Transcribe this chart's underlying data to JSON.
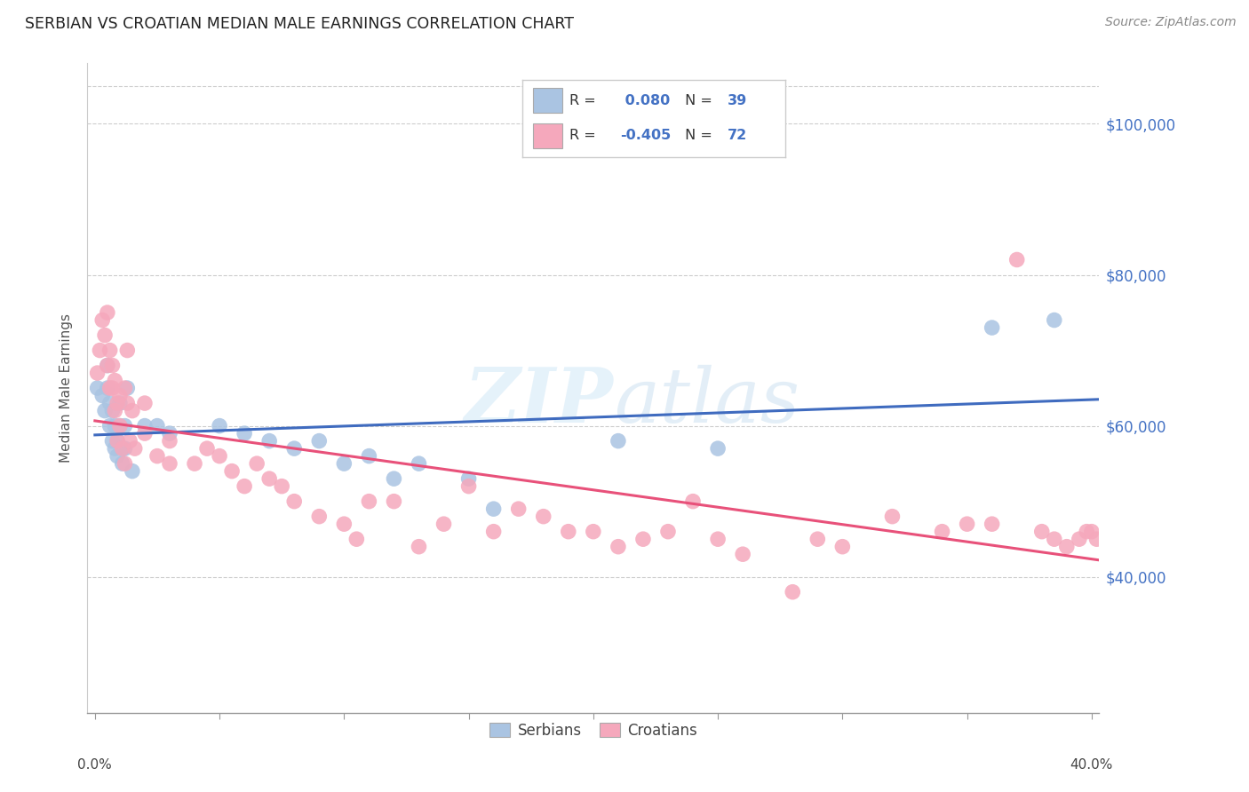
{
  "title": "SERBIAN VS CROATIAN MEDIAN MALE EARNINGS CORRELATION CHART",
  "source": "Source: ZipAtlas.com",
  "ylabel": "Median Male Earnings",
  "y_ticks": [
    40000,
    60000,
    80000,
    100000
  ],
  "y_tick_labels": [
    "$40,000",
    "$60,000",
    "$80,000",
    "$100,000"
  ],
  "ylim": [
    22000,
    108000
  ],
  "xlim": [
    -0.003,
    0.403
  ],
  "watermark_zip": "ZIP",
  "watermark_atlas": "atlas",
  "legend_R_serbian": " 0.080",
  "legend_R_croatian": "-0.405",
  "legend_N_serbian": "39",
  "legend_N_croatian": "72",
  "serbian_color": "#aac4e2",
  "croatian_color": "#f5a8bc",
  "trend_serbian_color": "#3f6bbf",
  "trend_croatian_color": "#e8517a",
  "label_color": "#4472c4",
  "serbian_x": [
    0.001,
    0.003,
    0.004,
    0.005,
    0.005,
    0.006,
    0.006,
    0.007,
    0.007,
    0.008,
    0.008,
    0.009,
    0.009,
    0.01,
    0.01,
    0.011,
    0.011,
    0.012,
    0.012,
    0.013,
    0.015,
    0.02,
    0.025,
    0.03,
    0.05,
    0.06,
    0.07,
    0.08,
    0.09,
    0.1,
    0.11,
    0.12,
    0.13,
    0.15,
    0.16,
    0.21,
    0.25,
    0.36,
    0.385
  ],
  "serbian_y": [
    65000,
    64000,
    62000,
    68000,
    65000,
    63000,
    60000,
    62000,
    58000,
    60000,
    57000,
    58000,
    56000,
    63000,
    60000,
    57000,
    55000,
    57000,
    60000,
    65000,
    54000,
    60000,
    60000,
    59000,
    60000,
    59000,
    58000,
    57000,
    58000,
    55000,
    56000,
    53000,
    55000,
    53000,
    49000,
    58000,
    57000,
    73000,
    74000
  ],
  "croatian_x": [
    0.001,
    0.002,
    0.003,
    0.004,
    0.005,
    0.005,
    0.006,
    0.006,
    0.007,
    0.007,
    0.008,
    0.008,
    0.009,
    0.009,
    0.01,
    0.01,
    0.011,
    0.012,
    0.012,
    0.013,
    0.013,
    0.014,
    0.015,
    0.016,
    0.02,
    0.02,
    0.025,
    0.03,
    0.03,
    0.04,
    0.045,
    0.05,
    0.055,
    0.06,
    0.065,
    0.07,
    0.075,
    0.08,
    0.09,
    0.1,
    0.105,
    0.11,
    0.12,
    0.13,
    0.14,
    0.15,
    0.16,
    0.17,
    0.18,
    0.19,
    0.2,
    0.21,
    0.22,
    0.23,
    0.24,
    0.25,
    0.26,
    0.28,
    0.29,
    0.3,
    0.32,
    0.34,
    0.35,
    0.36,
    0.37,
    0.38,
    0.385,
    0.39,
    0.395,
    0.398,
    0.4,
    0.402
  ],
  "croatian_y": [
    67000,
    70000,
    74000,
    72000,
    68000,
    75000,
    70000,
    65000,
    68000,
    65000,
    66000,
    62000,
    63000,
    58000,
    64000,
    60000,
    57000,
    65000,
    55000,
    70000,
    63000,
    58000,
    62000,
    57000,
    63000,
    59000,
    56000,
    58000,
    55000,
    55000,
    57000,
    56000,
    54000,
    52000,
    55000,
    53000,
    52000,
    50000,
    48000,
    47000,
    45000,
    50000,
    50000,
    44000,
    47000,
    52000,
    46000,
    49000,
    48000,
    46000,
    46000,
    44000,
    45000,
    46000,
    50000,
    45000,
    43000,
    38000,
    45000,
    44000,
    48000,
    46000,
    47000,
    47000,
    82000,
    46000,
    45000,
    44000,
    45000,
    46000,
    46000,
    45000
  ]
}
